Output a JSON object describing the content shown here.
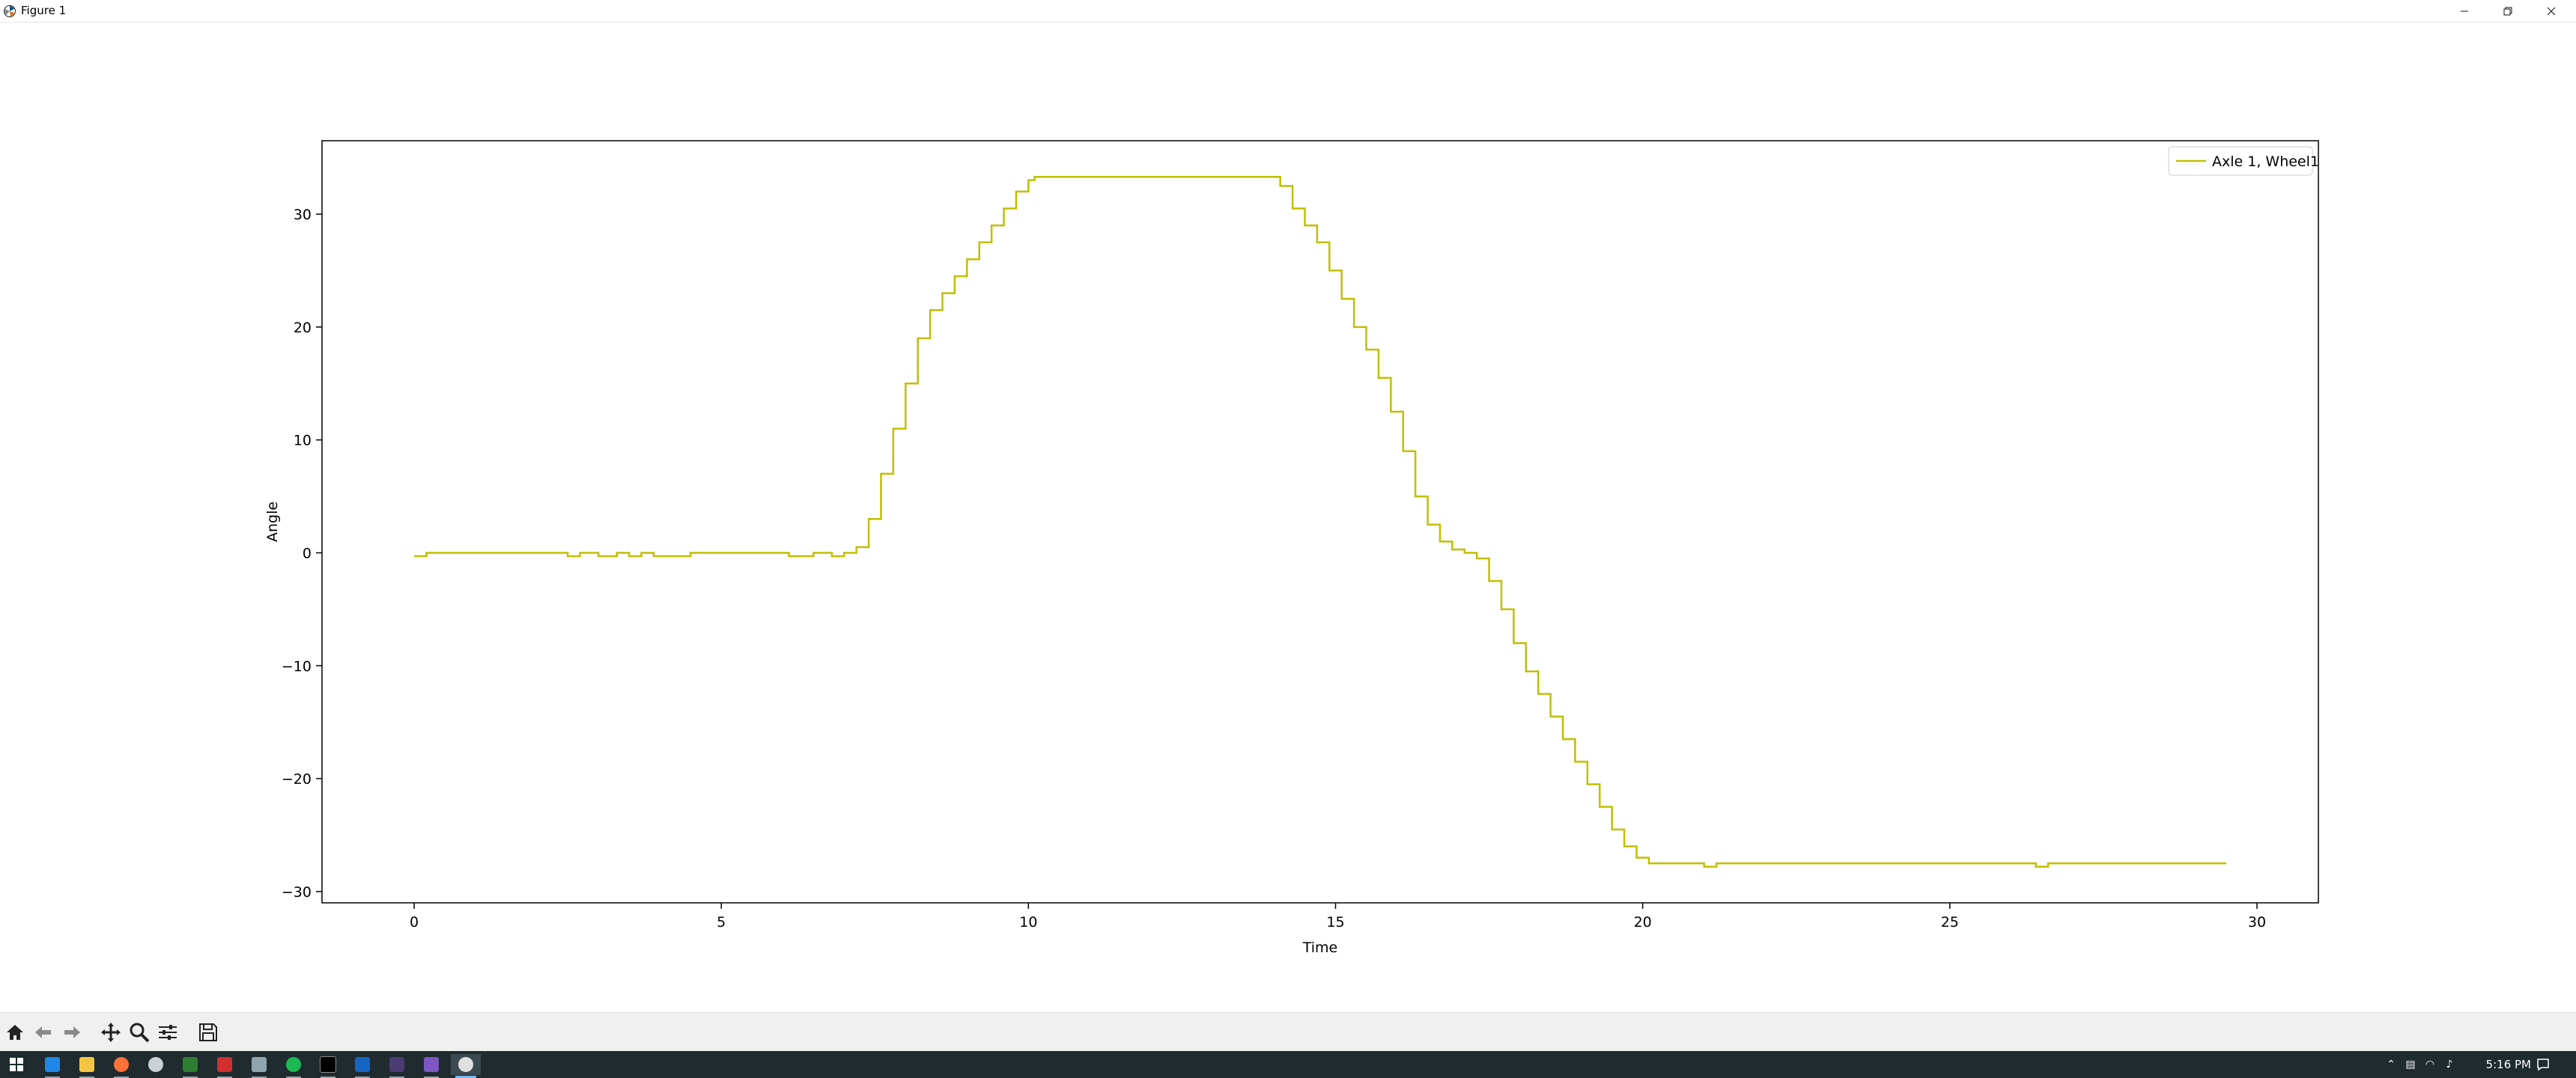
{
  "window": {
    "title": "Figure 1"
  },
  "chart_data": {
    "type": "line",
    "title": "",
    "xlabel": "Time",
    "ylabel": "Angle",
    "xlim": [
      -1.5,
      31
    ],
    "ylim": [
      -31,
      36.5
    ],
    "xticks": [
      0,
      5,
      10,
      15,
      20,
      25,
      30
    ],
    "yticks": [
      -30,
      -20,
      -10,
      0,
      10,
      20,
      30
    ],
    "ytick_labels": [
      "−30",
      "−20",
      "−10",
      "0",
      "10",
      "20",
      "30"
    ],
    "legend_position": "top-right",
    "grid": false,
    "series": [
      {
        "name": "Axle 1, Wheel1",
        "color": "#bfbf00",
        "drawstyle": "steps",
        "x": [
          0.0,
          0.2,
          0.6,
          1.0,
          2.3,
          2.5,
          2.7,
          2.8,
          3.0,
          3.3,
          3.5,
          3.7,
          3.9,
          4.5,
          6.0,
          6.1,
          6.5,
          6.8,
          7.0,
          7.2,
          7.4,
          7.6,
          7.8,
          8.0,
          8.2,
          8.4,
          8.6,
          8.8,
          9.0,
          9.2,
          9.4,
          9.6,
          9.8,
          10.0,
          10.1,
          10.3,
          12.0,
          13.0,
          13.9,
          14.1,
          14.3,
          14.5,
          14.7,
          14.9,
          15.1,
          15.3,
          15.5,
          15.7,
          15.9,
          16.1,
          16.3,
          16.5,
          16.7,
          16.9,
          17.1,
          17.3,
          17.5,
          17.7,
          17.9,
          18.1,
          18.3,
          18.5,
          18.7,
          18.9,
          19.1,
          19.3,
          19.5,
          19.7,
          19.9,
          20.1,
          20.3,
          20.9,
          21.0,
          21.2,
          23.0,
          26.3,
          26.4,
          26.6,
          29.5
        ],
        "y": [
          -0.3,
          0.0,
          0.0,
          0.0,
          0.0,
          -0.3,
          0.0,
          0.0,
          -0.3,
          0.0,
          -0.3,
          0.0,
          -0.3,
          0.0,
          0.0,
          -0.3,
          0.0,
          -0.3,
          0.0,
          0.5,
          3.0,
          7.0,
          11.0,
          15.0,
          19.0,
          21.5,
          23.0,
          24.5,
          26.0,
          27.5,
          29.0,
          30.5,
          32.0,
          33.0,
          33.3,
          33.3,
          33.3,
          33.3,
          33.3,
          32.5,
          30.5,
          29.0,
          27.5,
          25.0,
          22.5,
          20.0,
          18.0,
          15.5,
          12.5,
          9.0,
          5.0,
          2.5,
          1.0,
          0.3,
          0.0,
          -0.5,
          -2.5,
          -5.0,
          -8.0,
          -10.5,
          -12.5,
          -14.5,
          -16.5,
          -18.5,
          -20.5,
          -22.5,
          -24.5,
          -26.0,
          -27.0,
          -27.5,
          -27.5,
          -27.5,
          -27.8,
          -27.5,
          -27.5,
          -27.5,
          -27.8,
          -27.5,
          -27.5
        ]
      }
    ]
  },
  "toolbar": {
    "buttons": [
      "home-icon",
      "back-arrow-icon",
      "forward-arrow-icon",
      "pan-icon",
      "zoom-icon",
      "configure-subplots-icon",
      "save-icon"
    ]
  },
  "taskbar": {
    "clock": "5:16 PM"
  }
}
